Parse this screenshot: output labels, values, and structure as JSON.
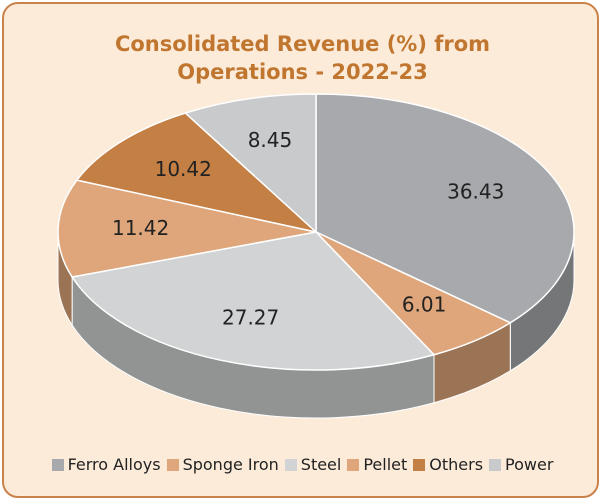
{
  "chart_data": {
    "type": "pie3d",
    "title": "Consolidated Revenue (%) from Operations - 2022-23",
    "categories": [
      "Ferro Alloys",
      "Sponge Iron",
      "Steel",
      "Pellet",
      "Others",
      "Power"
    ],
    "values": [
      36.43,
      6.01,
      27.27,
      11.42,
      10.42,
      8.45
    ],
    "colors": [
      "#a7a9ac",
      "#dea67a",
      "#d1d3d4",
      "#dea67a",
      "#c47f44",
      "#c9cacc"
    ],
    "legend": "bottom"
  }
}
